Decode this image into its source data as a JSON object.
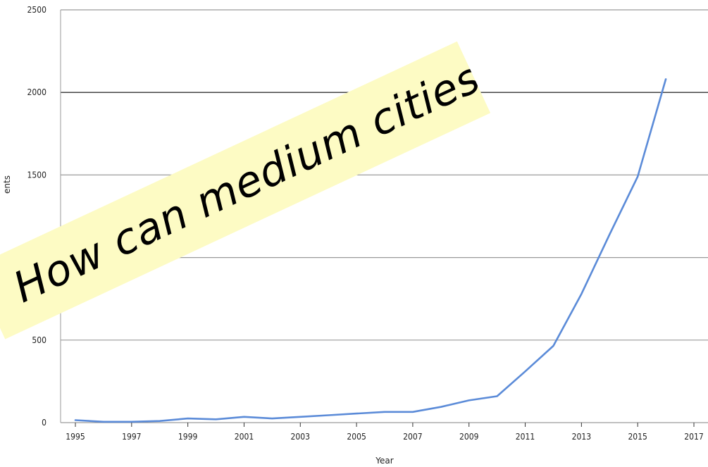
{
  "overlay": {
    "text": "How can medium cities ma"
  },
  "chart_data": {
    "type": "line",
    "xlabel": "Year",
    "ylabel": "ents",
    "xlim": [
      1995,
      2017
    ],
    "ylim": [
      0,
      2500
    ],
    "x_ticks": [
      "1995",
      "1997",
      "1999",
      "2001",
      "2003",
      "2005",
      "2007",
      "2009",
      "2011",
      "2013",
      "2015",
      "2017"
    ],
    "y_ticks": [
      "0",
      "500",
      "1000",
      "1500",
      "2000",
      "2500"
    ],
    "grid": true,
    "color": "#5b8bd8",
    "series": [
      {
        "x": [
          1995,
          1996,
          1997,
          1998,
          1999,
          2000,
          2001,
          2002,
          2003,
          2004,
          2005,
          2006,
          2007,
          2008,
          2009,
          2010,
          2011,
          2012,
          2013,
          2014,
          2015,
          2016
        ],
        "values": [
          15,
          5,
          5,
          10,
          25,
          20,
          35,
          25,
          35,
          45,
          55,
          65,
          65,
          95,
          135,
          160,
          310,
          465,
          780,
          1140,
          1490,
          2080
        ]
      }
    ]
  }
}
